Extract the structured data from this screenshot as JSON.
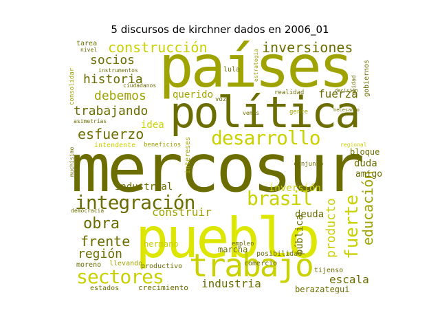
{
  "title": "5 discursos de kirchner dados en 2006_01",
  "colors": {
    "dark": "#6b6d00",
    "mid": "#9fa300",
    "light": "#c9d200",
    "bright": "#dde600"
  },
  "words": [
    {
      "text": "mercosur",
      "tone": "dark",
      "rot": 0
    },
    {
      "text": "países",
      "tone": "mid",
      "rot": 0
    },
    {
      "text": "política",
      "tone": "dark",
      "rot": 0
    },
    {
      "text": "pueblo",
      "tone": "bright",
      "rot": 0
    },
    {
      "text": "trabajo",
      "tone": "light",
      "rot": 0
    },
    {
      "text": "integración",
      "tone": "dark",
      "rot": 0
    },
    {
      "text": "desarrollo",
      "tone": "light",
      "rot": 0
    },
    {
      "text": "brasil",
      "tone": "light",
      "rot": 0
    },
    {
      "text": "sectores",
      "tone": "light",
      "rot": 0
    },
    {
      "text": "construcción",
      "tone": "light",
      "rot": 0
    },
    {
      "text": "inversiones",
      "tone": "dark",
      "rot": 0
    },
    {
      "text": "historia",
      "tone": "dark",
      "rot": 0
    },
    {
      "text": "socios",
      "tone": "dark",
      "rot": 0
    },
    {
      "text": "trabajando",
      "tone": "dark",
      "rot": 0
    },
    {
      "text": "esfuerzo",
      "tone": "dark",
      "rot": 0
    },
    {
      "text": "debemos",
      "tone": "mid",
      "rot": 0
    },
    {
      "text": "fuerza",
      "tone": "dark",
      "rot": 0
    },
    {
      "text": "obra",
      "tone": "dark",
      "rot": 0
    },
    {
      "text": "frente",
      "tone": "dark",
      "rot": 0
    },
    {
      "text": "región",
      "tone": "dark",
      "rot": 0
    },
    {
      "text": "industrial",
      "tone": "dark",
      "rot": 0
    },
    {
      "text": "construir",
      "tone": "mid",
      "rot": 0
    },
    {
      "text": "industria",
      "tone": "dark",
      "rot": 0
    },
    {
      "text": "escala",
      "tone": "dark",
      "rot": 0
    },
    {
      "text": "educación",
      "tone": "mid",
      "rot": -90
    },
    {
      "text": "fuerte",
      "tone": "light",
      "rot": -90
    },
    {
      "text": "producto",
      "tone": "light",
      "rot": -90
    },
    {
      "text": "pública",
      "tone": "dark",
      "rot": -90
    },
    {
      "text": "deuda",
      "tone": "dark",
      "rot": 0
    },
    {
      "text": "duda",
      "tone": "dark",
      "rot": 0
    },
    {
      "text": "amigo",
      "tone": "dark",
      "rot": 0
    },
    {
      "text": "bloque",
      "tone": "dark",
      "rot": 0
    },
    {
      "text": "inversión",
      "tone": "light",
      "rot": 0
    },
    {
      "text": "idea",
      "tone": "light",
      "rot": 0
    },
    {
      "text": "querido",
      "tone": "mid",
      "rot": 0
    },
    {
      "text": "hermano",
      "tone": "light",
      "rot": 0
    },
    {
      "text": "marcha",
      "tone": "dark",
      "rot": 0
    },
    {
      "text": "posibilidad",
      "tone": "dark",
      "rot": 0
    },
    {
      "text": "comercio",
      "tone": "dark",
      "rot": 0
    },
    {
      "text": "productivo",
      "tone": "dark",
      "rot": 0
    },
    {
      "text": "crecimiento",
      "tone": "dark",
      "rot": 0
    },
    {
      "text": "estados",
      "tone": "dark",
      "rot": 0
    },
    {
      "text": "moreno",
      "tone": "dark",
      "rot": 0
    },
    {
      "text": "llevando",
      "tone": "mid",
      "rot": 0
    },
    {
      "text": "berazategui",
      "tone": "dark",
      "rot": 0
    },
    {
      "text": "tijenso",
      "tone": "dark",
      "rot": 0
    },
    {
      "text": "tarea",
      "tone": "dark",
      "rot": 0
    },
    {
      "text": "nivel",
      "tone": "dark",
      "rot": 0
    },
    {
      "text": "lula",
      "tone": "dark",
      "rot": 0
    },
    {
      "text": "intendente",
      "tone": "light",
      "rot": 0
    },
    {
      "text": "beneficios",
      "tone": "mid",
      "rot": 0
    },
    {
      "text": "empleo",
      "tone": "dark",
      "rot": 0
    },
    {
      "text": "gobiernos",
      "tone": "dark",
      "rot": -90
    },
    {
      "text": "calidad",
      "tone": "dark",
      "rot": -90
    },
    {
      "text": "consolidar",
      "tone": "mid",
      "rot": -90
    },
    {
      "text": "asimetrías",
      "tone": "dark",
      "rot": 0
    },
    {
      "text": "intereses",
      "tone": "mid",
      "rot": -90
    },
    {
      "text": "realidad",
      "tone": "dark",
      "rot": 0
    },
    {
      "text": "gente",
      "tone": "mid",
      "rot": 0
    },
    {
      "text": "conjunto",
      "tone": "dark",
      "rot": 0
    },
    {
      "text": "regional",
      "tone": "light",
      "rot": 0
    },
    {
      "text": "vemos",
      "tone": "dark",
      "rot": 0
    },
    {
      "text": "ciudadanos",
      "tone": "dark",
      "rot": 0
    },
    {
      "text": "instrumentos",
      "tone": "dark",
      "rot": 0
    },
    {
      "text": "voz",
      "tone": "dark",
      "rot": 0
    },
    {
      "text": "estrategia",
      "tone": "mid",
      "rot": -90
    },
    {
      "text": "democracia",
      "tone": "dark",
      "rot": 0
    },
    {
      "text": "necesario",
      "tone": "dark",
      "rot": 0
    },
    {
      "text": "decisión",
      "tone": "dark",
      "rot": 0
    },
    {
      "text": "muchísimo",
      "tone": "dark",
      "rot": -90
    }
  ]
}
